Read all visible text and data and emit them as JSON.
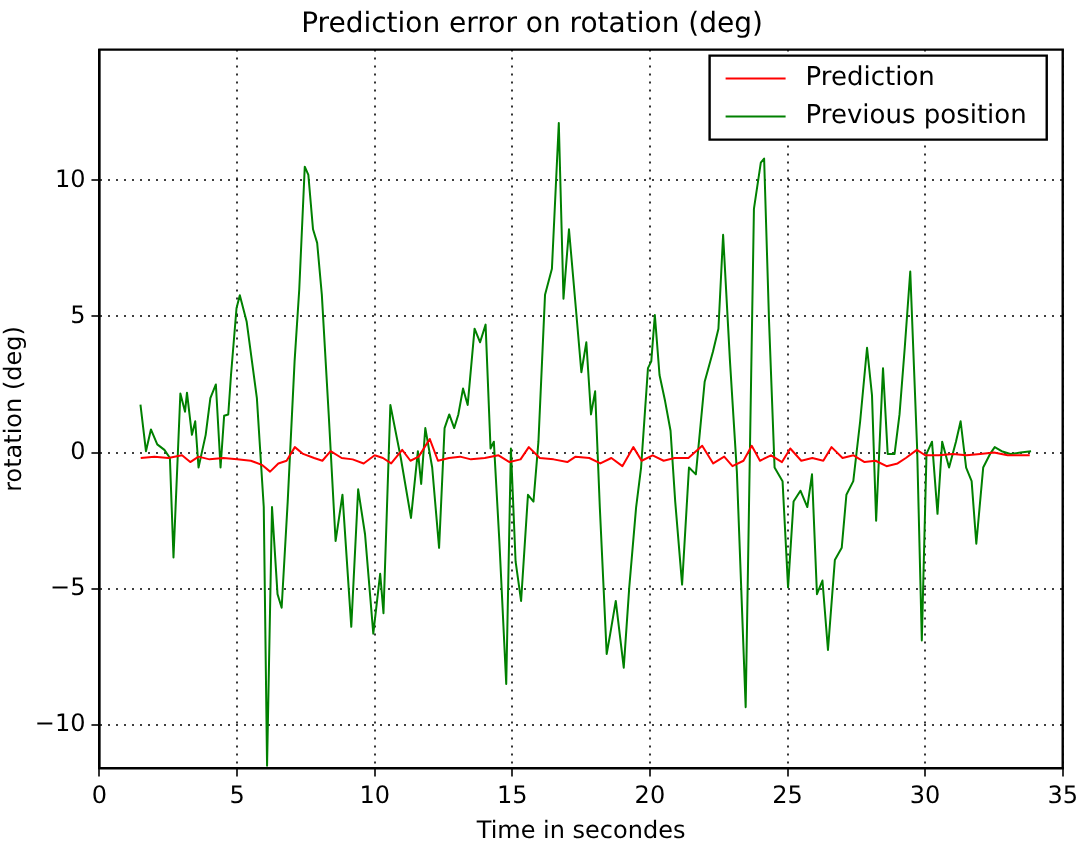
{
  "chart_data": {
    "type": "line",
    "title": "Prediction error on rotation (deg)",
    "xlabel": "Time in secondes",
    "ylabel": "rotation (deg)",
    "xlim": [
      0,
      35
    ],
    "xticks": [
      0,
      5,
      10,
      15,
      20,
      25,
      30,
      35
    ],
    "ylim": [
      -11.6,
      14.8
    ],
    "yticks": [
      -10,
      -5,
      0,
      5,
      10
    ],
    "grid": true,
    "legend": "top right",
    "marker": "none",
    "line_style": "solid",
    "series": [
      {
        "name": "Prediction",
        "color": "#ff0000",
        "x": [
          1.5,
          2.0,
          2.5,
          3.0,
          3.3,
          3.6,
          4.0,
          4.5,
          5.0,
          5.5,
          5.9,
          6.2,
          6.5,
          6.8,
          7.1,
          7.4,
          7.8,
          8.1,
          8.4,
          8.8,
          9.2,
          9.6,
          10.0,
          10.3,
          10.6,
          11.0,
          11.3,
          11.6,
          12.0,
          12.3,
          12.7,
          13.1,
          13.5,
          14.0,
          14.5,
          14.9,
          15.3,
          15.6,
          16.0,
          16.5,
          17.0,
          17.3,
          17.8,
          18.2,
          18.6,
          19.0,
          19.4,
          19.7,
          20.1,
          20.5,
          20.9,
          21.4,
          21.9,
          22.3,
          22.7,
          23.0,
          23.4,
          23.7,
          24.0,
          24.4,
          24.8,
          25.1,
          25.5,
          25.9,
          26.3,
          26.6,
          27.0,
          27.4,
          27.8,
          28.2,
          28.6,
          29.0,
          29.3,
          29.7,
          30.0,
          30.5,
          31.0,
          31.5,
          32.0,
          32.5,
          33.0,
          33.8
        ],
        "values": [
          -0.2,
          -0.15,
          -0.2,
          -0.1,
          -0.35,
          -0.15,
          -0.25,
          -0.2,
          -0.25,
          -0.3,
          -0.45,
          -0.7,
          -0.4,
          -0.3,
          0.2,
          -0.05,
          -0.2,
          -0.3,
          0.05,
          -0.2,
          -0.25,
          -0.4,
          -0.1,
          -0.2,
          -0.4,
          0.1,
          -0.3,
          -0.15,
          0.5,
          -0.3,
          -0.2,
          -0.15,
          -0.25,
          -0.2,
          -0.1,
          -0.35,
          -0.25,
          0.2,
          -0.2,
          -0.25,
          -0.35,
          -0.15,
          -0.2,
          -0.4,
          -0.2,
          -0.5,
          0.2,
          -0.3,
          -0.1,
          -0.3,
          -0.2,
          -0.2,
          0.25,
          -0.4,
          -0.15,
          -0.5,
          -0.3,
          0.25,
          -0.3,
          -0.1,
          -0.35,
          0.15,
          -0.3,
          -0.2,
          -0.3,
          0.2,
          -0.2,
          -0.1,
          -0.35,
          -0.3,
          -0.5,
          -0.4,
          -0.2,
          0.1,
          -0.1,
          -0.1,
          -0.05,
          -0.1,
          -0.05,
          0.0,
          -0.1,
          -0.1
        ]
      },
      {
        "name": "Previous position",
        "color": "#008000",
        "x": [
          1.49,
          1.69,
          1.87,
          2.1,
          2.36,
          2.56,
          2.69,
          2.94,
          3.11,
          3.18,
          3.36,
          3.48,
          3.6,
          3.86,
          4.03,
          4.23,
          4.4,
          4.53,
          4.68,
          4.78,
          4.98,
          5.1,
          5.35,
          5.72,
          5.97,
          6.09,
          6.27,
          6.47,
          6.62,
          6.84,
          7.09,
          7.26,
          7.46,
          7.59,
          7.76,
          7.91,
          8.08,
          8.33,
          8.58,
          8.83,
          9.15,
          9.4,
          9.65,
          9.95,
          10.2,
          10.32,
          10.57,
          10.95,
          11.32,
          11.57,
          11.69,
          11.84,
          12.09,
          12.34,
          12.54,
          12.71,
          12.89,
          13.04,
          13.21,
          13.38,
          13.63,
          13.83,
          14.03,
          14.21,
          14.33,
          14.53,
          14.78,
          14.95,
          15.12,
          15.32,
          15.57,
          15.77,
          15.95,
          16.19,
          16.44,
          16.69,
          16.86,
          17.06,
          17.31,
          17.51,
          17.69,
          17.86,
          18.01,
          18.18,
          18.43,
          18.56,
          18.76,
          19.05,
          19.25,
          19.5,
          19.68,
          19.93,
          20.05,
          20.18,
          20.35,
          20.55,
          20.75,
          20.92,
          21.17,
          21.42,
          21.67,
          21.99,
          22.29,
          22.49,
          22.66,
          22.91,
          23.16,
          23.48,
          23.78,
          24.03,
          24.15,
          24.33,
          24.53,
          24.82,
          25.02,
          25.22,
          25.47,
          25.72,
          25.89,
          26.07,
          26.27,
          26.47,
          26.72,
          26.97,
          27.14,
          27.39,
          27.64,
          27.89,
          28.07,
          28.22,
          28.47,
          28.64,
          28.89,
          29.07,
          29.26,
          29.46,
          29.71,
          29.88,
          30.05,
          30.25,
          30.45,
          30.62,
          30.87,
          31.12,
          31.29,
          31.49,
          31.69,
          31.86,
          32.11,
          32.36,
          32.53,
          32.78,
          33.1,
          33.47,
          33.85
        ],
        "values": [
          1.76,
          0.05,
          0.85,
          0.3,
          0.1,
          -0.2,
          -3.85,
          2.17,
          1.5,
          2.2,
          0.65,
          1.15,
          -0.55,
          0.65,
          2.0,
          2.5,
          -0.55,
          1.35,
          1.4,
          2.85,
          5.3,
          5.78,
          4.8,
          2.0,
          -2.0,
          -11.5,
          -2.0,
          -5.2,
          -5.7,
          -1.8,
          3.35,
          6.0,
          10.5,
          10.2,
          8.2,
          7.7,
          5.8,
          1.4,
          -3.25,
          -1.55,
          -6.4,
          -1.35,
          -3.0,
          -6.65,
          -4.45,
          -5.9,
          1.75,
          -0.2,
          -2.4,
          0.05,
          -1.15,
          0.9,
          -0.55,
          -3.5,
          0.9,
          1.4,
          0.9,
          1.4,
          2.35,
          1.75,
          4.55,
          4.05,
          4.7,
          0.15,
          0.4,
          -3.25,
          -8.5,
          0.15,
          -4.0,
          -5.45,
          -1.55,
          -1.8,
          0.4,
          5.8,
          6.75,
          12.1,
          5.65,
          8.2,
          5.3,
          2.95,
          4.05,
          1.4,
          2.25,
          -2.0,
          -7.4,
          -6.65,
          -5.45,
          -7.9,
          -4.95,
          -2.0,
          -0.55,
          3.1,
          3.35,
          5.05,
          2.85,
          1.9,
          0.8,
          -1.8,
          -4.85,
          -0.55,
          -0.8,
          2.6,
          3.7,
          4.55,
          8.0,
          3.35,
          -0.7,
          -9.35,
          8.95,
          10.65,
          10.8,
          4.8,
          -0.55,
          -1.05,
          -4.95,
          -1.8,
          -1.4,
          -2.0,
          -0.8,
          -5.2,
          -4.7,
          -7.25,
          -3.95,
          -3.5,
          -1.55,
          -1.05,
          1.15,
          3.85,
          2.1,
          -2.5,
          3.1,
          -0.05,
          -0.05,
          1.4,
          3.85,
          6.65,
          0.15,
          -6.9,
          -0.05,
          0.4,
          -2.25,
          0.4,
          -0.55,
          0.4,
          1.15,
          -0.55,
          -1.05,
          -3.35,
          -0.55,
          -0.05,
          0.2,
          0.05,
          -0.05,
          0.0,
          0.05
        ]
      }
    ]
  }
}
